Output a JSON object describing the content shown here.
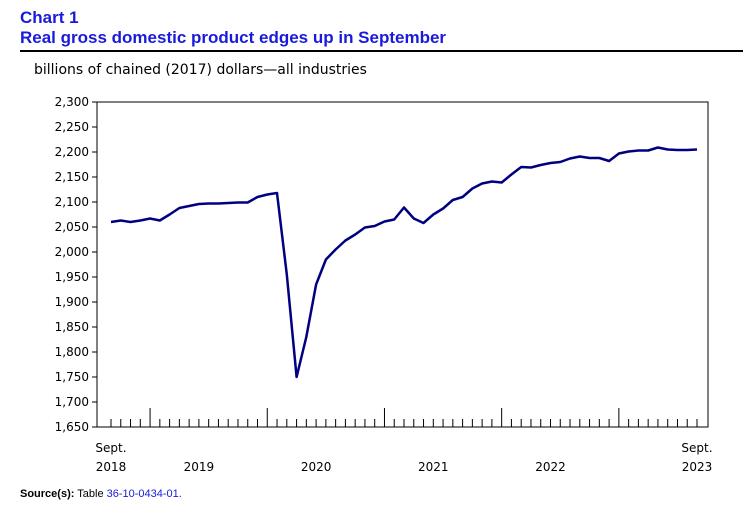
{
  "header": {
    "chart_number": "Chart 1",
    "title": "Real gross domestic product edges up in September"
  },
  "footer": {
    "source_label": "Source(s):",
    "source_prefix": "Table",
    "source_link": "36-10-0434-01."
  },
  "colors": {
    "title": "#1a1adb",
    "line": "#000080",
    "axis": "#000000"
  },
  "chart_data": {
    "type": "line",
    "title": "Real gross domestic product edges up in September",
    "ylabel": "billions of chained (2017) dollars—all industries",
    "xlabel": "",
    "ylim": [
      1650,
      2300
    ],
    "yticks": [
      1650,
      1700,
      1750,
      1800,
      1850,
      1900,
      1950,
      2000,
      2050,
      2100,
      2150,
      2200,
      2250,
      2300
    ],
    "ytick_labels": [
      "1,650",
      "1,700",
      "1,750",
      "1,800",
      "1,850",
      "1,900",
      "1,950",
      "2,000",
      "2,050",
      "2,100",
      "2,150",
      "2,200",
      "2,250",
      "2,300"
    ],
    "x_start": "2018-09",
    "x_end": "2023-09",
    "x_tick_labels": [
      {
        "month": "2018-09",
        "line1": "Sept.",
        "line2": "2018"
      },
      {
        "month": "2019-06",
        "line1": "",
        "line2": "2019"
      },
      {
        "month": "2020-06",
        "line1": "",
        "line2": "2020"
      },
      {
        "month": "2021-06",
        "line1": "",
        "line2": "2021"
      },
      {
        "month": "2022-06",
        "line1": "",
        "line2": "2022"
      },
      {
        "month": "2023-09",
        "line1": "Sept.",
        "line2": "2023"
      }
    ],
    "major_ticks": [
      "2019-01",
      "2020-01",
      "2021-01",
      "2022-01",
      "2023-01"
    ],
    "grid": false,
    "legend": "none",
    "series": [
      {
        "x": [
          "2018-09",
          "2018-10",
          "2018-11",
          "2018-12",
          "2019-01",
          "2019-02",
          "2019-03",
          "2019-04",
          "2019-05",
          "2019-06",
          "2019-07",
          "2019-08",
          "2019-09",
          "2019-10",
          "2019-11",
          "2019-12",
          "2020-01",
          "2020-02",
          "2020-03",
          "2020-04",
          "2020-05",
          "2020-06",
          "2020-07",
          "2020-08",
          "2020-09",
          "2020-10",
          "2020-11",
          "2020-12",
          "2021-01",
          "2021-02",
          "2021-03",
          "2021-04",
          "2021-05",
          "2021-06",
          "2021-07",
          "2021-08",
          "2021-09",
          "2021-10",
          "2021-11",
          "2021-12",
          "2022-01",
          "2022-02",
          "2022-03",
          "2022-04",
          "2022-05",
          "2022-06",
          "2022-07",
          "2022-08",
          "2022-09",
          "2022-10",
          "2022-11",
          "2022-12",
          "2023-01",
          "2023-02",
          "2023-03",
          "2023-04",
          "2023-05",
          "2023-06",
          "2023-07",
          "2023-08",
          "2023-09"
        ],
        "values": [
          2060,
          2063,
          2060,
          2063,
          2067,
          2063,
          2075,
          2088,
          2092,
          2096,
          2097,
          2097,
          2098,
          2099,
          2099,
          2110,
          2115,
          2118,
          1955,
          1750,
          1830,
          1935,
          1985,
          2005,
          2023,
          2035,
          2049,
          2052,
          2061,
          2065,
          2089,
          2067,
          2058,
          2075,
          2087,
          2104,
          2110,
          2127,
          2137,
          2141,
          2139,
          2155,
          2170,
          2169,
          2174,
          2178,
          2180,
          2187,
          2191,
          2188,
          2188,
          2182,
          2197,
          2201,
          2203,
          2203,
          2209,
          2205,
          2204,
          2204,
          2205
        ]
      }
    ]
  }
}
